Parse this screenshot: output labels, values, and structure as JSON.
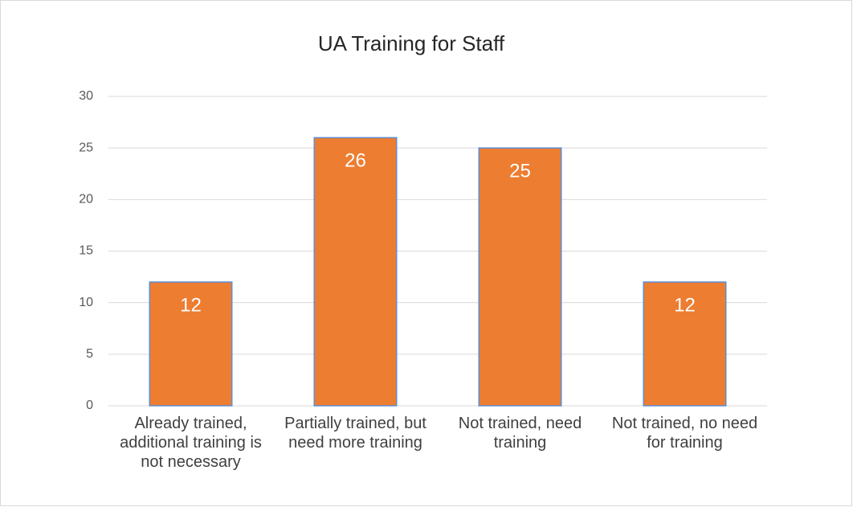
{
  "chart_data": {
    "type": "bar",
    "title": "UA Training for Staff",
    "categories": [
      "Already trained, additional training is not necessary",
      "Partially trained, but need more training",
      "Not trained, need training",
      "Not trained, no need for training"
    ],
    "values": [
      12,
      26,
      25,
      12
    ],
    "color": "#ed7d31",
    "ylim": [
      0,
      30
    ],
    "yticks": [
      0,
      5,
      10,
      15,
      20,
      25,
      30
    ],
    "grid": true
  }
}
